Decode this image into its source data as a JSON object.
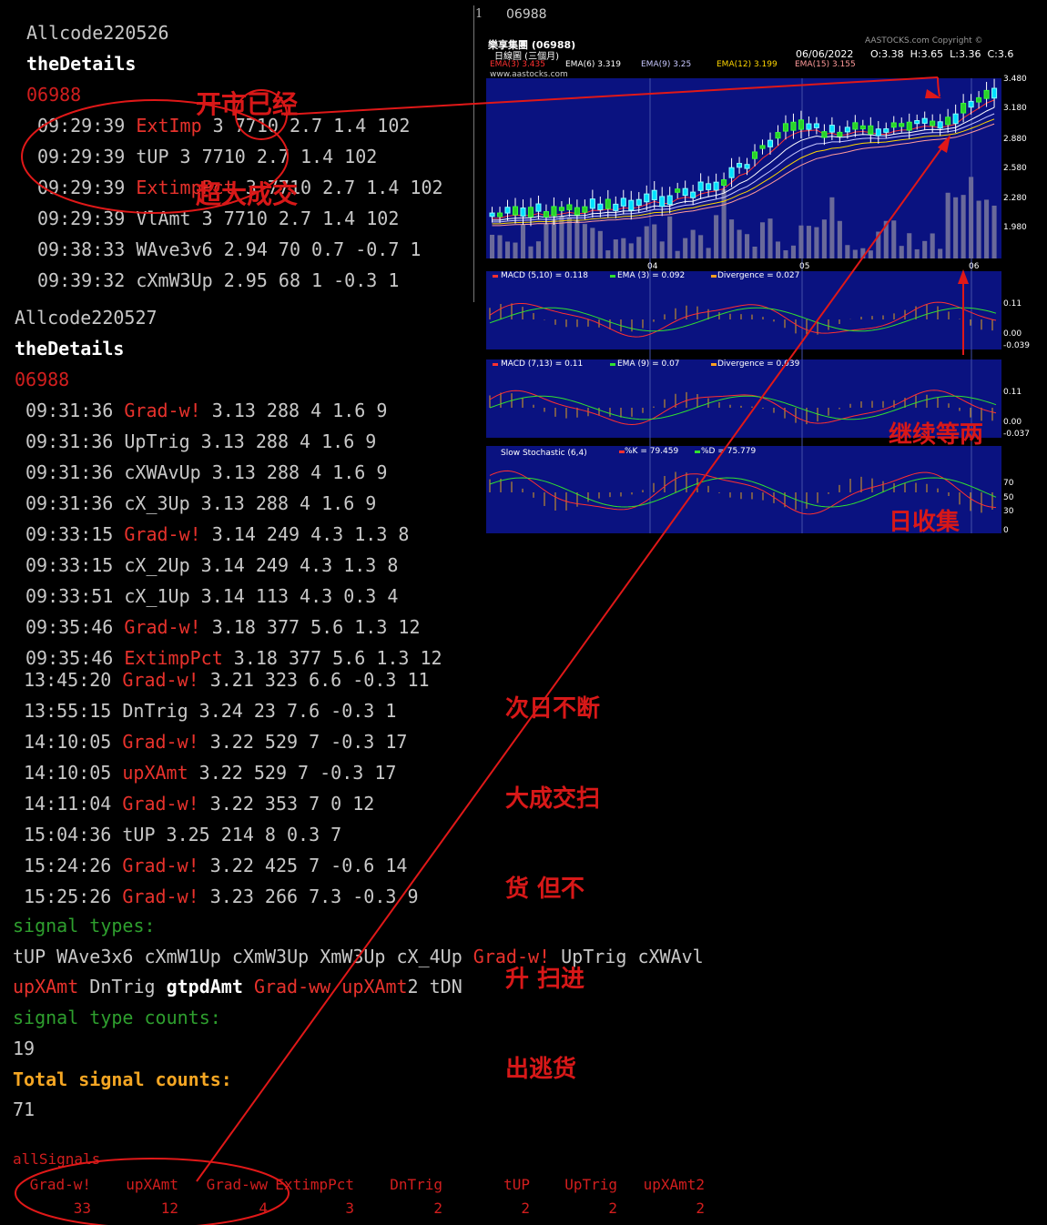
{
  "day1": {
    "header": "Allcode220526",
    "details_label": "theDetails",
    "code": "06988",
    "rows": [
      {
        "time": "09:29:39",
        "signal": "ExtImp",
        "signal_color": "red",
        "values": "3 7710 2.7 1.4 102"
      },
      {
        "time": "09:29:39",
        "signal": "tUP",
        "signal_color": "gray",
        "values": "3 7710 2.7 1.4 102"
      },
      {
        "time": "09:29:39",
        "signal": "ExtimpPct",
        "signal_color": "red",
        "values": "3 7710 2.7 1.4 102"
      },
      {
        "time": "09:29:39",
        "signal": "VlAmt",
        "signal_color": "gray",
        "values": "3 7710 2.7 1.4 102"
      },
      {
        "time": "09:38:33",
        "signal": "WAve3v6",
        "signal_color": "gray",
        "values": "2.94 70 0.7 -0.7 1"
      },
      {
        "time": "09:39:32",
        "signal": "cXmW3Up",
        "signal_color": "gray",
        "values": "2.95 68 1 -0.3 1"
      }
    ]
  },
  "day2": {
    "header": "Allcode220527",
    "details_label": "theDetails",
    "code": "06988",
    "rows": [
      {
        "time": "09:31:36",
        "signal": "Grad-w!",
        "signal_color": "red",
        "values": "3.13 288 4 1.6 9"
      },
      {
        "time": "09:31:36",
        "signal": "UpTrig",
        "signal_color": "gray",
        "values": "3.13 288 4 1.6 9"
      },
      {
        "time": "09:31:36",
        "signal": "cXWAvUp",
        "signal_color": "gray",
        "values": "3.13 288 4 1.6 9"
      },
      {
        "time": "09:31:36",
        "signal": "cX_3Up",
        "signal_color": "gray",
        "values": "3.13 288 4 1.6 9"
      },
      {
        "time": "09:33:15",
        "signal": "Grad-w!",
        "signal_color": "red",
        "values": "3.14 249 4.3 1.3 8"
      },
      {
        "time": "09:33:15",
        "signal": "cX_2Up",
        "signal_color": "gray",
        "values": "3.14 249 4.3 1.3 8"
      },
      {
        "time": "09:33:51",
        "signal": "cX_1Up",
        "signal_color": "gray",
        "values": "3.14 113 4.3 0.3 4"
      },
      {
        "time": "09:35:46",
        "signal": "Grad-w!",
        "signal_color": "red",
        "values": "3.18 377 5.6 1.3 12"
      },
      {
        "time": "09:35:46",
        "signal": "ExtimpPct",
        "signal_color": "red",
        "values": "3.18 377 5.6 1.3 12"
      }
    ],
    "rows_after": [
      {
        "time": "13:45:20",
        "signal": "Grad-w!",
        "signal_color": "red",
        "values": "3.21 323 6.6 -0.3 11"
      },
      {
        "time": "13:55:15",
        "signal": "DnTrig",
        "signal_color": "gray",
        "values": "3.24 23 7.6 -0.3 1"
      },
      {
        "time": "14:10:05",
        "signal": "Grad-w!",
        "signal_color": "red",
        "values": "3.22 529 7 -0.3 17"
      },
      {
        "time": "14:10:05",
        "signal": "upXAmt",
        "signal_color": "red",
        "values": "3.22 529 7 -0.3 17"
      },
      {
        "time": "14:11:04",
        "signal": "Grad-w!",
        "signal_color": "red",
        "values": "3.22 353 7 0 12"
      },
      {
        "time": "15:04:36",
        "signal": "tUP",
        "signal_color": "gray",
        "values": "3.25 214 8 0.3 7"
      },
      {
        "time": "15:24:26",
        "signal": "Grad-w!",
        "signal_color": "red",
        "values": "3.22 425 7 -0.6 14"
      },
      {
        "time": "15:25:26",
        "signal": "Grad-w!",
        "signal_color": "red",
        "values": "3.23 266 7.3 -0.3 9"
      }
    ]
  },
  "signal_types": {
    "label": "signal types:",
    "line1": [
      {
        "t": "tUP",
        "c": "gray"
      },
      {
        "t": "WAve3x6",
        "c": "gray"
      },
      {
        "t": "cXmW1Up",
        "c": "gray"
      },
      {
        "t": "cXmW3Up",
        "c": "gray"
      },
      {
        "t": "XmW3Up",
        "c": "gray"
      },
      {
        "t": "cX_4Up",
        "c": "gray"
      },
      {
        "t": "Grad-w!",
        "c": "red"
      },
      {
        "t": "UpTrig",
        "c": "gray"
      },
      {
        "t": "cXWAvl",
        "c": "gray"
      }
    ],
    "line2": [
      {
        "t": "upXAmt",
        "c": "red"
      },
      {
        "t": "DnTrig",
        "c": "gray"
      },
      {
        "t": "gtpdAmt",
        "c": "white"
      },
      {
        "t": "Grad-ww",
        "c": "red"
      },
      {
        "t": "upXAmt",
        "c": "red",
        "suffix": "2"
      },
      {
        "t": "tDN",
        "c": "gray"
      }
    ],
    "count_label": "signal type counts:",
    "count_value": "19",
    "total_label": "Total signal counts:",
    "total_value": "71"
  },
  "all_signals": {
    "label": "allSignals",
    "names": [
      "Grad-w!",
      "upXAmt",
      "Grad-ww",
      "ExtimpPct",
      "DnTrig",
      "tUP",
      "UpTrig",
      "upXAmt2"
    ],
    "counts": [
      "33",
      "12",
      "4",
      "3",
      "2",
      "2",
      "2",
      "2"
    ]
  },
  "chart_header": {
    "page_num": "1",
    "code": "06988",
    "name": "樂享集團 (06988)",
    "period": "日線圖 (三個月)",
    "copyright": "AASTOCKS.com Copyright ©",
    "date": "06/06/2022",
    "ohlc": "O:3.38  H:3.65  L:3.36  C:3.6",
    "site": "www.aastocks.com",
    "ema": [
      {
        "label": "EMA(3) 3.435",
        "color": "#ff3030"
      },
      {
        "label": "EMA(6) 3.319",
        "color": "#ffffff"
      },
      {
        "label": "EMA(9) 3.25",
        "color": "#c8c8ff"
      },
      {
        "label": "EMA(12) 3.199",
        "color": "#ffd700"
      },
      {
        "label": "EMA(15) 3.155",
        "color": "#ff9a9a"
      }
    ],
    "price_ticks": [
      "3.480",
      "3.180",
      "2.880",
      "2.580",
      "2.280",
      "1.980"
    ],
    "month_ticks": [
      "04",
      "05",
      "06"
    ],
    "macd1": {
      "macd": "MACD (5,10) = 0.118",
      "ema": "EMA (3) = 0.092",
      "div": "Divergence = 0.027",
      "ticks": [
        "0.11",
        "0.00",
        "-0.039"
      ]
    },
    "macd2": {
      "macd": "MACD (7,13) = 0.11",
      "ema": "EMA (9) = 0.07",
      "div": "Divergence = 0.039",
      "ticks": [
        "0.11",
        "0.00",
        "-0.037"
      ]
    },
    "stoch": {
      "title": "Slow Stochastic (6,4)",
      "k": "%K = 79.459",
      "d": "%D = 75.779",
      "ticks": [
        "70",
        "50",
        "30",
        "0"
      ]
    }
  },
  "annotations": {
    "top": [
      "开市已经",
      "超大成交"
    ],
    "right": [
      "继续等两",
      "日收集"
    ],
    "middle": [
      "次日不断",
      "大成交扫",
      "货 但不",
      "升 扫进",
      "出逃货"
    ]
  }
}
